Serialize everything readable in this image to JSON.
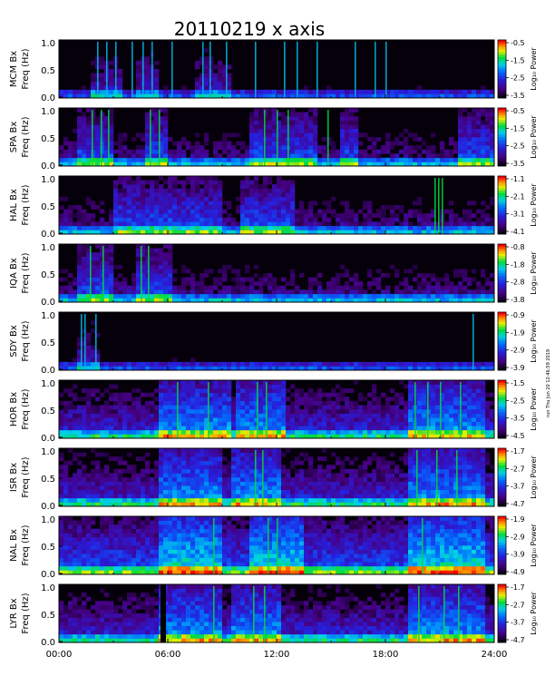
{
  "chart_data": {
    "type": "heatmap",
    "title": "20110219 x axis",
    "xlabel": "",
    "x_range_hours": [
      0,
      24
    ],
    "x_tick_labels": [
      "00:00",
      "06:00",
      "12:00",
      "18:00",
      "24:00"
    ],
    "colormap": "rainbow (violet-blue-cyan-green-yellow-orange-red)",
    "panels": [
      {
        "station": "MCM Bx",
        "freq_label": "Freq (Hz)",
        "ylim": [
          0,
          1.0
        ],
        "y_ticks": [
          "0.0",
          "0.5",
          "1.0"
        ],
        "cbar_label": "Log₁₀ Power",
        "cbar_ticks": [
          "-0.5",
          "-1.5",
          "-2.5",
          "-3.5"
        ],
        "activity": "low",
        "bursts": [
          2.1,
          2.6,
          3.1,
          4.0,
          4.6,
          5.1,
          6.2,
          7.9,
          8.3,
          9.2,
          10.8,
          12.4,
          13.1,
          14.2,
          16.3,
          17.4,
          18.0
        ],
        "noisy_intervals": [
          [
            1.8,
            3.5
          ],
          [
            4.2,
            5.5
          ],
          [
            7.5,
            9.5
          ]
        ]
      },
      {
        "station": "SPA Bx",
        "freq_label": "Freq (Hz)",
        "ylim": [
          0,
          1.0
        ],
        "y_ticks": [
          "0.0",
          "0.5",
          "1.0"
        ],
        "cbar_label": "Log₁₀ Power",
        "cbar_ticks": [
          "-0.5",
          "-1.5",
          "-2.5",
          "-3.5"
        ],
        "activity": "medium",
        "bursts": [
          1.8,
          2.3,
          2.7,
          5.0,
          5.5,
          11.3,
          12.0,
          12.6,
          14.8
        ],
        "noisy_intervals": [
          [
            1.0,
            3.0
          ],
          [
            4.8,
            6.0
          ],
          [
            10.5,
            14.2
          ],
          [
            15.5,
            16.5
          ],
          [
            22.0,
            24.0
          ]
        ]
      },
      {
        "station": "HAL Bx",
        "freq_label": "Freq (Hz)",
        "ylim": [
          0,
          1.0
        ],
        "y_ticks": [
          "0.0",
          "0.5",
          "1.0"
        ],
        "cbar_label": "Log₁₀ Power",
        "cbar_ticks": [
          "-1.1",
          "-2.1",
          "-3.1",
          "-4.1"
        ],
        "activity": "medium",
        "bursts": [
          20.7,
          20.9,
          21.1
        ],
        "noisy_intervals": [
          [
            3.0,
            9.0
          ],
          [
            10.0,
            13.0
          ]
        ]
      },
      {
        "station": "IQA Bx",
        "freq_label": "Freq (Hz)",
        "ylim": [
          0,
          1.0
        ],
        "y_ticks": [
          "0.0",
          "0.5",
          "1.0"
        ],
        "cbar_label": "Log₁₀ Power",
        "cbar_ticks": [
          "-0.8",
          "-1.8",
          "-2.8",
          "-3.8"
        ],
        "activity": "medium",
        "bursts": [
          1.7,
          2.4,
          4.5,
          4.9
        ],
        "noisy_intervals": [
          [
            1.0,
            3.0
          ],
          [
            4.2,
            6.2
          ]
        ]
      },
      {
        "station": "SDY Bx",
        "freq_label": "Freq (Hz)",
        "ylim": [
          0,
          1.0
        ],
        "y_ticks": [
          "0.0",
          "0.5",
          "1.0"
        ],
        "cbar_label": "Log₁₀ Power",
        "cbar_ticks": [
          "-0.9",
          "-1.9",
          "-2.9",
          "-3.9"
        ],
        "activity": "low",
        "bursts": [
          1.2,
          1.4,
          2.0,
          22.8
        ],
        "noisy_intervals": [
          [
            0.9,
            2.2
          ]
        ]
      },
      {
        "station": "HOR Bx",
        "freq_label": "Freq (Hz)",
        "ylim": [
          0,
          1.0
        ],
        "y_ticks": [
          "0.0",
          "0.5",
          "1.0"
        ],
        "cbar_label": "Log₁₀ Power",
        "cbar_ticks": [
          "-1.5",
          "-2.5",
          "-3.5",
          "-4.5"
        ],
        "activity": "high",
        "bursts": [
          6.5,
          8.2,
          10.9,
          11.4,
          19.6,
          20.3,
          21.0,
          22.1
        ],
        "noisy_intervals": [
          [
            5.5,
            9.5
          ],
          [
            9.8,
            12.5
          ],
          [
            19.3,
            23.5
          ]
        ]
      },
      {
        "station": "ISR Bx",
        "freq_label": "Freq (Hz)",
        "ylim": [
          0,
          1.0
        ],
        "y_ticks": [
          "0.0",
          "0.5",
          "1.0"
        ],
        "cbar_label": "Log₁₀ Power",
        "cbar_ticks": [
          "-1.7",
          "-2.7",
          "-3.7",
          "-4.7"
        ],
        "activity": "high",
        "bursts": [
          10.8,
          11.2,
          19.7,
          20.8,
          21.9
        ],
        "noisy_intervals": [
          [
            5.5,
            9.0
          ],
          [
            9.5,
            12.2
          ],
          [
            19.3,
            23.5
          ]
        ]
      },
      {
        "station": "NAL Bx",
        "freq_label": "Freq (Hz)",
        "ylim": [
          0,
          1.0
        ],
        "y_ticks": [
          "0.0",
          "0.5",
          "1.0"
        ],
        "cbar_label": "Log₁₀ Power",
        "cbar_ticks": [
          "-1.9",
          "-2.9",
          "-3.9",
          "-4.9"
        ],
        "activity": "very_high",
        "bursts": [
          8.5,
          11.5,
          12.0,
          20.0
        ],
        "noisy_intervals": [
          [
            5.5,
            9.0
          ],
          [
            10.5,
            13.5
          ],
          [
            19.3,
            23.5
          ]
        ]
      },
      {
        "station": "LYR Bx",
        "freq_label": "Freq (Hz)",
        "ylim": [
          0,
          1.0
        ],
        "y_ticks": [
          "0.0",
          "0.5",
          "1.0"
        ],
        "cbar_label": "Log₁₀ Power",
        "cbar_ticks": [
          "-1.7",
          "-2.7",
          "-3.7",
          "-4.7"
        ],
        "activity": "high",
        "bursts": [
          8.5,
          10.7,
          11.3,
          19.8,
          21.2,
          22.0
        ],
        "noisy_intervals": [
          [
            5.5,
            9.0
          ],
          [
            9.5,
            12.3
          ],
          [
            19.3,
            23.5
          ]
        ],
        "data_gap_hours": [
          5.6,
          5.9
        ]
      }
    ]
  },
  "side_stamp": "run Thu Jun 20 12:46:59 2019",
  "colorbar_colors": [
    "#ff0000",
    "#ff8000",
    "#ffff00",
    "#00e000",
    "#00e0e0",
    "#0040ff",
    "#6000c0",
    "#200040"
  ]
}
